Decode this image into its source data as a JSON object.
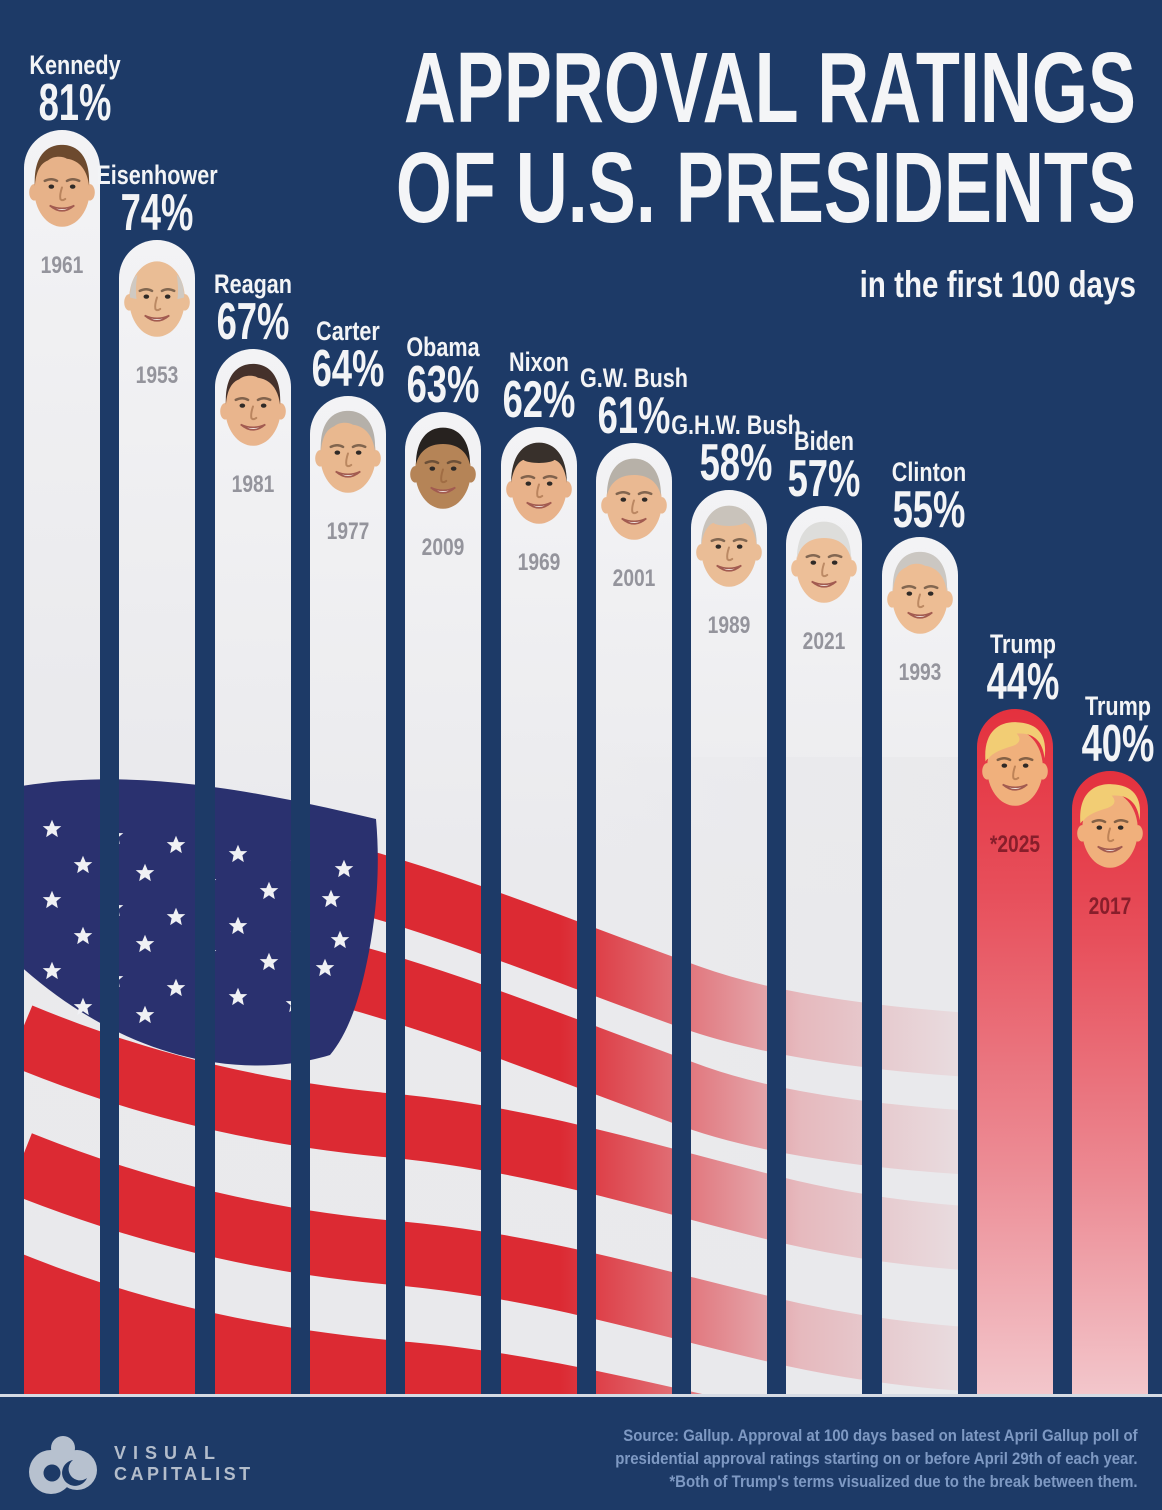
{
  "header": {
    "title_line1": "APPROVAL RATINGS",
    "title_line2": "OF U.S. PRESIDENTS",
    "subtitle": "in the first 100 days"
  },
  "chart_data": {
    "type": "bar",
    "title": "Approval Ratings of U.S. Presidents in the first 100 days",
    "unit": "%",
    "ylim": [
      0,
      100
    ],
    "legend": "none",
    "bars": [
      {
        "president": "Kennedy",
        "approval_pct": 81,
        "pct_label": "81%",
        "year_label": "1961",
        "bar_style": "white",
        "photo": {
          "hair_style": "side",
          "hair_color": "#6d4a2e",
          "skin": "#e7b289"
        }
      },
      {
        "president": "Eisenhower",
        "approval_pct": 74,
        "pct_label": "74%",
        "year_label": "1953",
        "bar_style": "white",
        "photo": {
          "hair_style": "bald",
          "hair_color": "#cfc9c2",
          "skin": "#eabd95"
        }
      },
      {
        "president": "Reagan",
        "approval_pct": 67,
        "pct_label": "67%",
        "year_label": "1981",
        "bar_style": "white",
        "photo": {
          "hair_style": "side",
          "hair_color": "#45312b",
          "skin": "#e9b58d"
        }
      },
      {
        "president": "Carter",
        "approval_pct": 64,
        "pct_label": "64%",
        "year_label": "1977",
        "bar_style": "white",
        "photo": {
          "hair_style": "side",
          "hair_color": "#b5b0a9",
          "skin": "#e9b88f"
        }
      },
      {
        "president": "Obama",
        "approval_pct": 63,
        "pct_label": "63%",
        "year_label": "2009",
        "bar_style": "white",
        "photo": {
          "hair_style": "short",
          "hair_color": "#27221f",
          "skin": "#b58457"
        }
      },
      {
        "president": "Nixon",
        "approval_pct": 62,
        "pct_label": "62%",
        "year_label": "1969",
        "bar_style": "white",
        "photo": {
          "hair_style": "receded",
          "hair_color": "#38302b",
          "skin": "#e8b28a"
        }
      },
      {
        "president": "G.W. Bush",
        "approval_pct": 61,
        "pct_label": "61%",
        "year_label": "2001",
        "bar_style": "white",
        "photo": {
          "hair_style": "short",
          "hair_color": "#b7b1a8",
          "skin": "#eab992"
        }
      },
      {
        "president": "G.H.W. Bush",
        "approval_pct": 58,
        "pct_label": "58%",
        "year_label": "1989",
        "bar_style": "white",
        "photo": {
          "hair_style": "receded",
          "hair_color": "#c9c3bb",
          "skin": "#eabd96"
        }
      },
      {
        "president": "Biden",
        "approval_pct": 57,
        "pct_label": "57%",
        "year_label": "2021",
        "bar_style": "white",
        "photo": {
          "hair_style": "short",
          "hair_color": "#dddddb",
          "skin": "#edbf98"
        }
      },
      {
        "president": "Clinton",
        "approval_pct": 55,
        "pct_label": "55%",
        "year_label": "1993",
        "bar_style": "white",
        "photo": {
          "hair_style": "side",
          "hair_color": "#cbc7c2",
          "skin": "#edbd94"
        }
      },
      {
        "president": "Trump",
        "approval_pct": 44,
        "pct_label": "44%",
        "year_label": "*2025",
        "bar_style": "red",
        "photo": {
          "hair_style": "swoop",
          "hair_color": "#f2cd74",
          "skin": "#f0b07c"
        }
      },
      {
        "president": "Trump",
        "approval_pct": 40,
        "pct_label": "40%",
        "year_label": "2017",
        "bar_style": "red",
        "photo": {
          "hair_style": "swoop",
          "hair_color": "#f2cd74",
          "skin": "#f0b07c"
        }
      }
    ]
  },
  "footer": {
    "logo_text_line1": "VISUAL",
    "logo_text_line2": "CAPITALIST",
    "source_line1": "Source: Gallup. Approval at 100 days based on latest April Gallup poll of",
    "source_line2": "presidential approval ratings starting on or before April 29th of each year.",
    "source_line3": "*Both of Trump's terms visualized due to the break between them."
  },
  "colors": {
    "background": "#1d3a67",
    "bar_white": "#e9e9ec",
    "trump_bar_red_top": "#e4313e",
    "flag_red": "#dc2a33",
    "flag_canton_blue": "#2a316f",
    "title_text": "#f4f5f7",
    "year_gray": "#94949c",
    "trump_year_red": "#871e2b",
    "source_text": "#7e99c3"
  }
}
